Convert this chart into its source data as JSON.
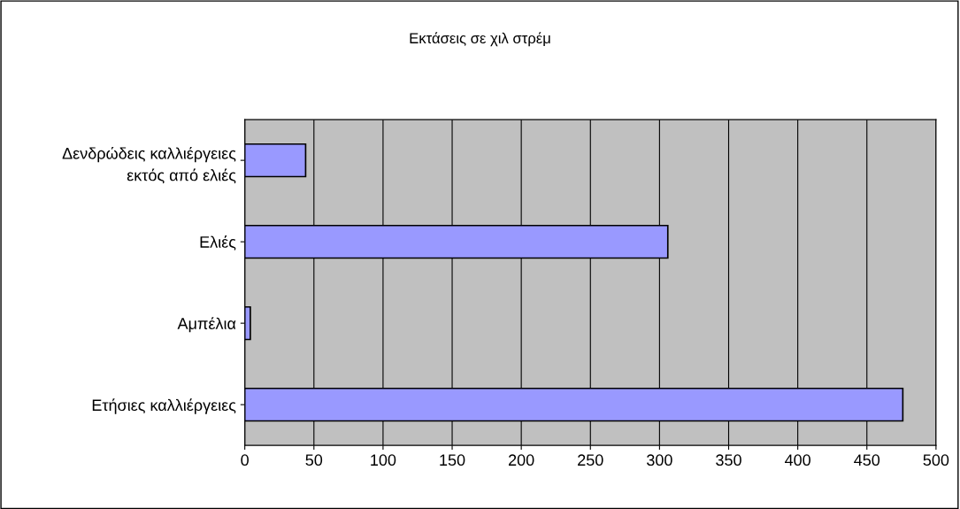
{
  "chart_data": {
    "type": "bar",
    "orientation": "horizontal",
    "title": "Εκτάσεις σε χιλ στρέμ",
    "categories": [
      "Δενδρώδεις καλλιέργειες\nεκτός από ελιές",
      "Ελιές",
      "Αμπέλια",
      "Ετήσιες καλλιέργειες"
    ],
    "values": [
      44,
      306,
      4,
      476
    ],
    "color": "#9999ff",
    "xlim": [
      0,
      500
    ],
    "xticks": [
      0,
      50,
      100,
      150,
      200,
      250,
      300,
      350,
      400,
      450,
      500
    ],
    "grid": "x",
    "legend": false
  }
}
